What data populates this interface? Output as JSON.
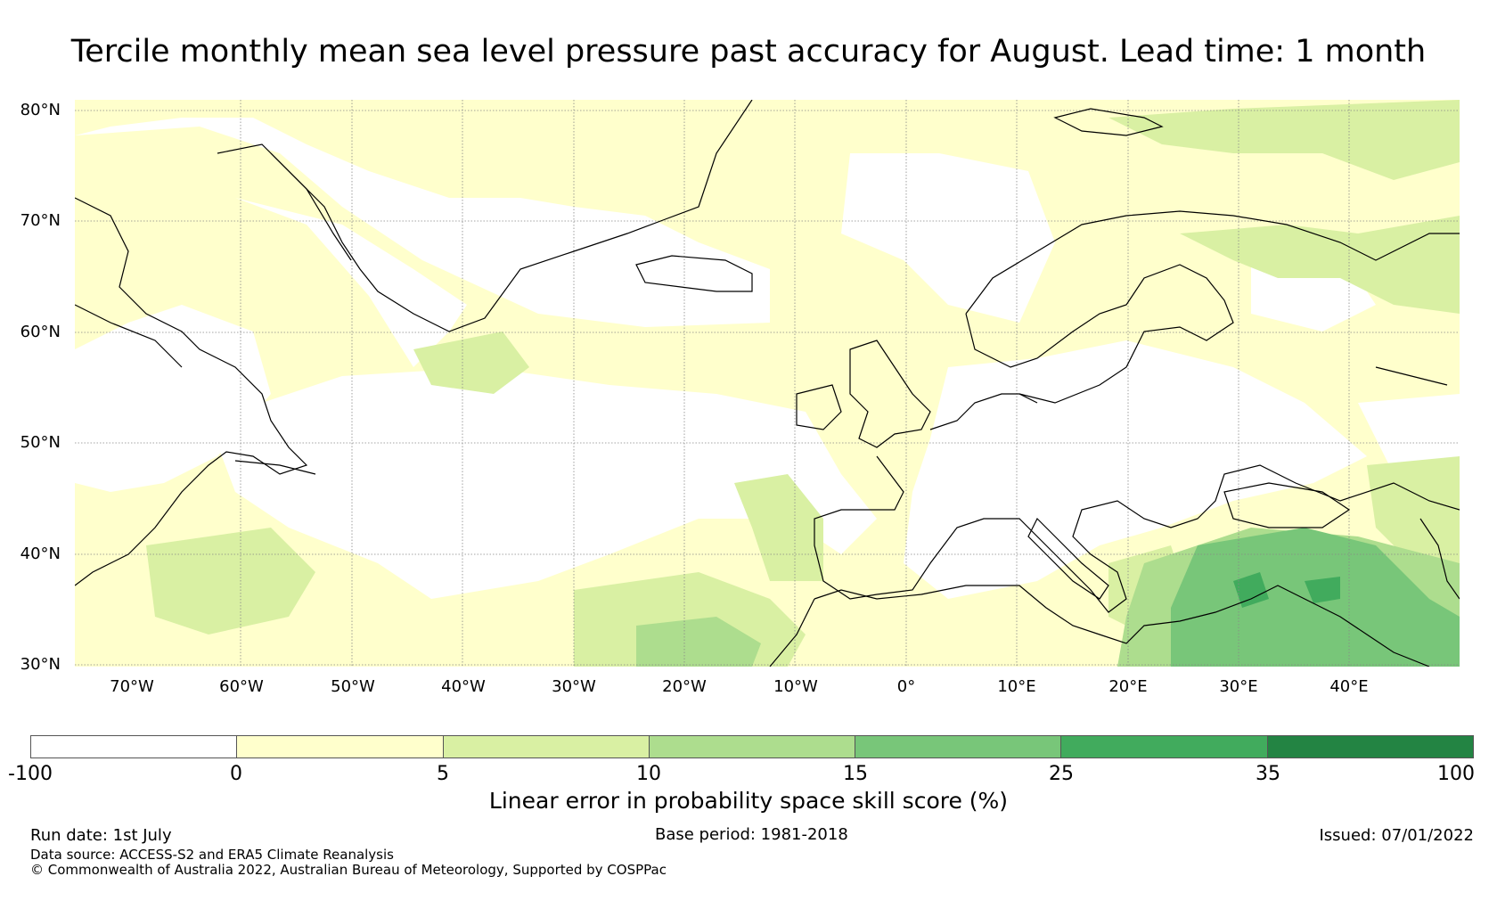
{
  "title": "Tercile monthly mean sea level pressure past accuracy for August. Lead time: 1 month",
  "map": {
    "lat_labels": [
      "80°N",
      "70°N",
      "60°N",
      "50°N",
      "40°N",
      "30°N"
    ],
    "lon_labels": [
      "70°W",
      "60°W",
      "50°W",
      "40°W",
      "30°W",
      "20°W",
      "10°W",
      "0°",
      "10°E",
      "20°E",
      "30°E",
      "40°E"
    ]
  },
  "colorbar": {
    "ticks": [
      "-100",
      "0",
      "5",
      "10",
      "15",
      "25",
      "35",
      "100"
    ],
    "colors": [
      "#ffffff",
      "#ffffcc",
      "#d9f0a3",
      "#addd8e",
      "#78c679",
      "#41ab5d",
      "#238443"
    ],
    "label": "Linear error in probability space skill score (%)"
  },
  "footer": {
    "run_date": "Run date: 1st July",
    "base_period": "Base period: 1981-2018",
    "issued": "Issued: 07/01/2022",
    "data_source": "Data source: ACCESS-S2 and ERA5 Climate Reanalysis",
    "copyright": "© Commonwealth of Australia 2022, Australian Bureau of Meteorology, Supported by COSPPac"
  }
}
